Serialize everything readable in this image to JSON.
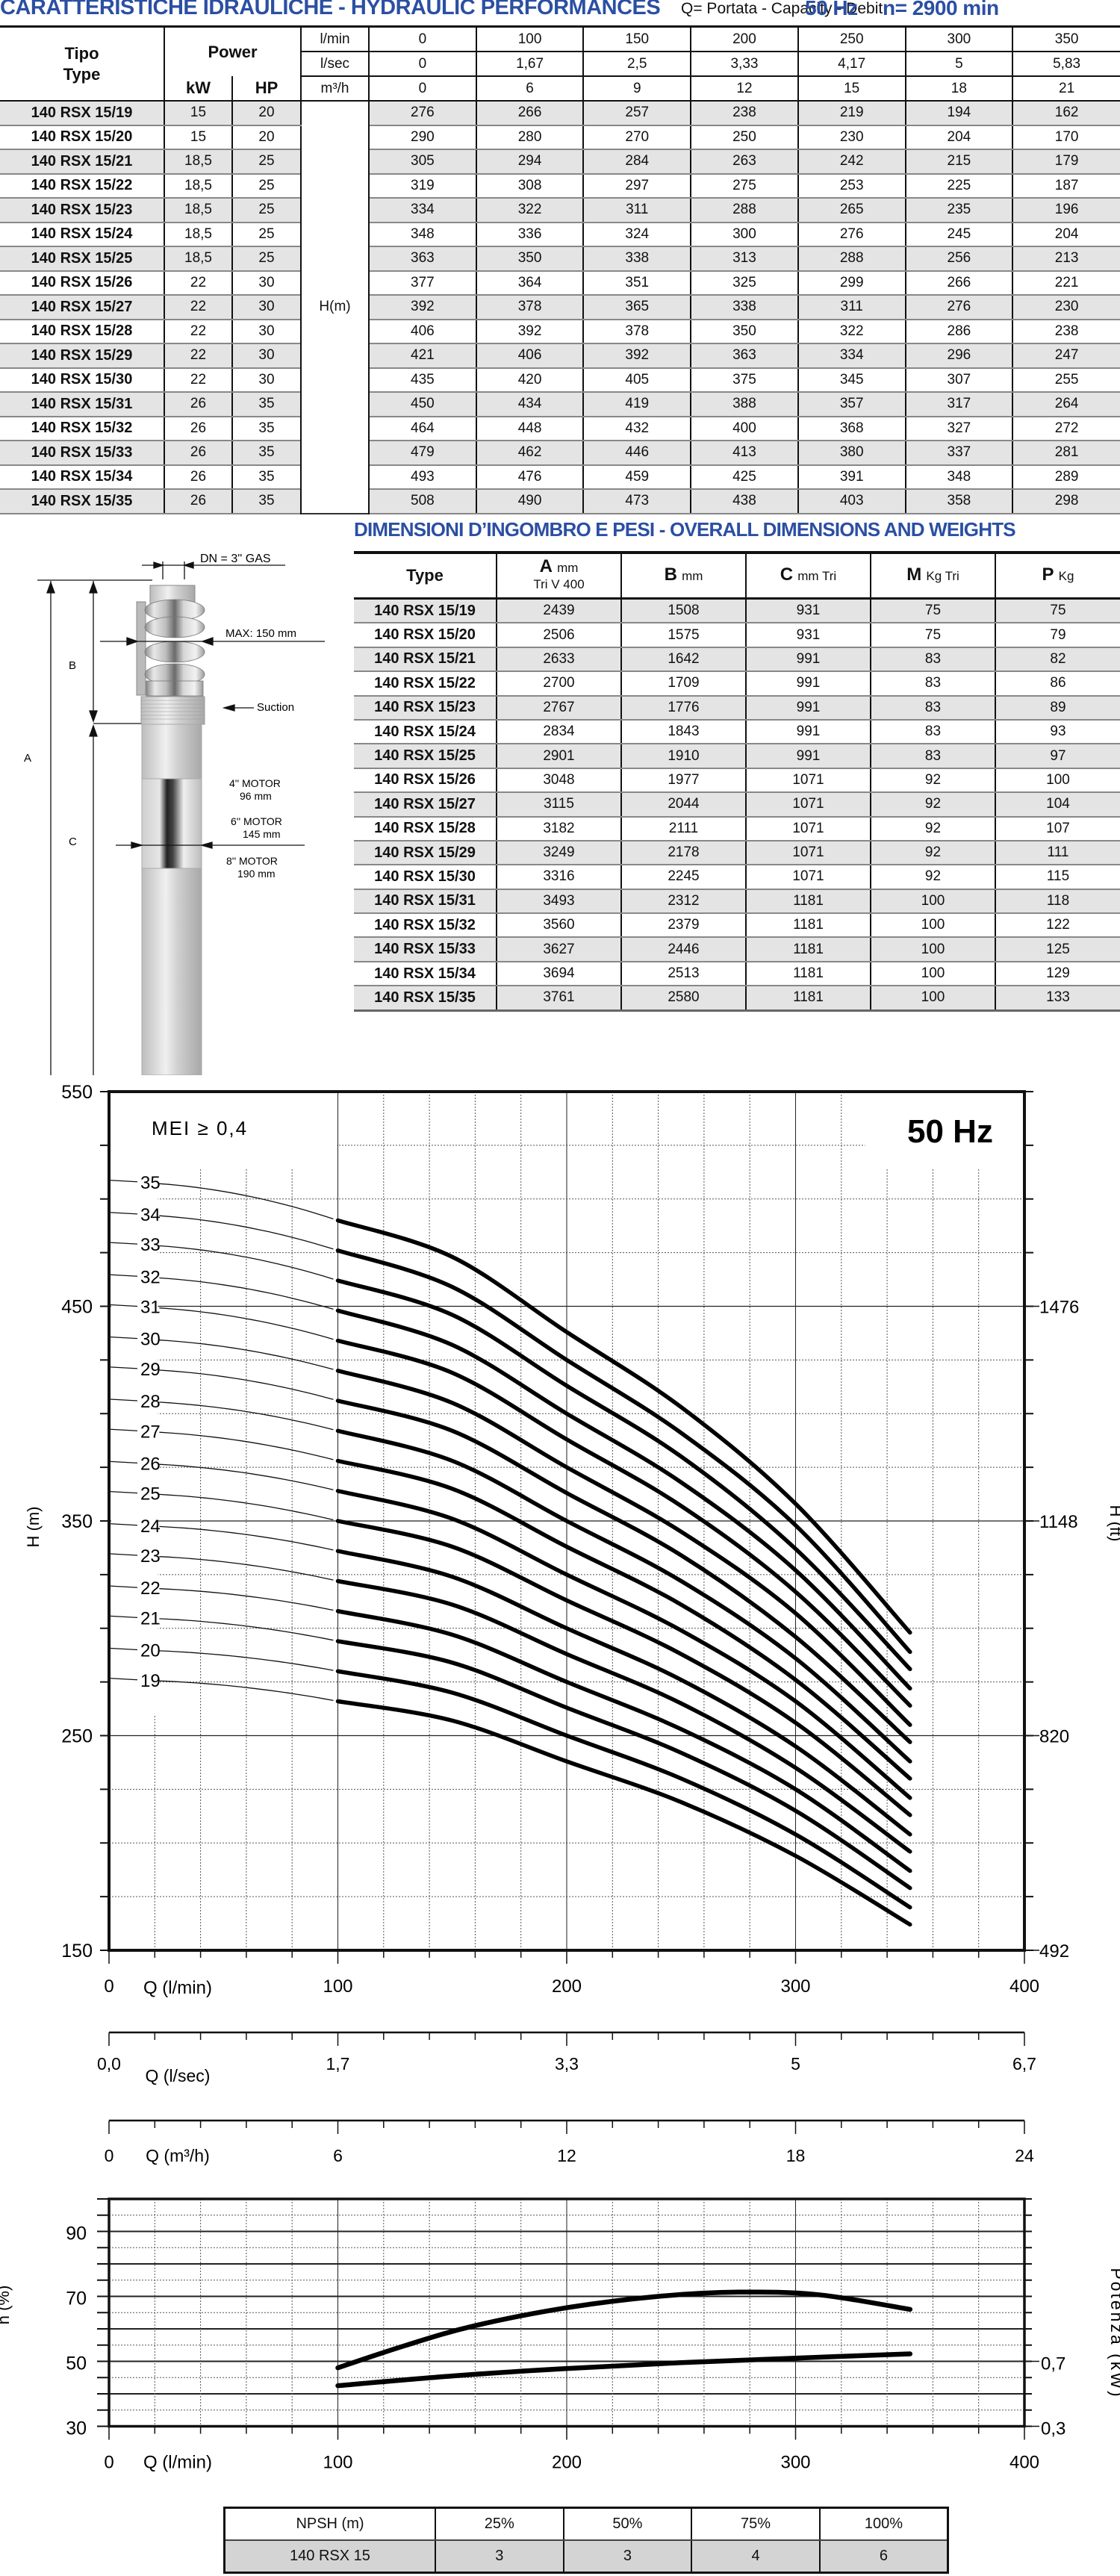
{
  "header": {
    "title": "CARATTERISTICHE IDRAULICHE - HYDRAULIC PERFORMANCES",
    "subtitle": "Q= Portata - Capacity - Debit",
    "frequency": "50 Hz",
    "speed": "n= 2900 min",
    "title_color": "#2b4fa3"
  },
  "performance_table": {
    "type_header": [
      "Tipo",
      "Type"
    ],
    "power_header": "Power",
    "kw_header": "kW",
    "hp_header": "HP",
    "flow_units": [
      {
        "unit": "l/min",
        "values": [
          "0",
          "100",
          "150",
          "200",
          "250",
          "300",
          "350"
        ]
      },
      {
        "unit": "l/sec",
        "values": [
          "0",
          "1,67",
          "2,5",
          "3,33",
          "4,17",
          "5",
          "5,83"
        ]
      },
      {
        "unit": "m³/h",
        "values": [
          "0",
          "6",
          "9",
          "12",
          "15",
          "18",
          "21"
        ]
      }
    ],
    "head_label": "H(m)",
    "rows": [
      {
        "type": "140 RSX 15/19",
        "kw": "15",
        "hp": "20",
        "h": [
          "276",
          "266",
          "257",
          "238",
          "219",
          "194",
          "162"
        ]
      },
      {
        "type": "140 RSX 15/20",
        "kw": "15",
        "hp": "20",
        "h": [
          "290",
          "280",
          "270",
          "250",
          "230",
          "204",
          "170"
        ]
      },
      {
        "type": "140 RSX 15/21",
        "kw": "18,5",
        "hp": "25",
        "h": [
          "305",
          "294",
          "284",
          "263",
          "242",
          "215",
          "179"
        ]
      },
      {
        "type": "140 RSX 15/22",
        "kw": "18,5",
        "hp": "25",
        "h": [
          "319",
          "308",
          "297",
          "275",
          "253",
          "225",
          "187"
        ]
      },
      {
        "type": "140 RSX 15/23",
        "kw": "18,5",
        "hp": "25",
        "h": [
          "334",
          "322",
          "311",
          "288",
          "265",
          "235",
          "196"
        ]
      },
      {
        "type": "140 RSX 15/24",
        "kw": "18,5",
        "hp": "25",
        "h": [
          "348",
          "336",
          "324",
          "300",
          "276",
          "245",
          "204"
        ]
      },
      {
        "type": "140 RSX 15/25",
        "kw": "18,5",
        "hp": "25",
        "h": [
          "363",
          "350",
          "338",
          "313",
          "288",
          "256",
          "213"
        ]
      },
      {
        "type": "140 RSX 15/26",
        "kw": "22",
        "hp": "30",
        "h": [
          "377",
          "364",
          "351",
          "325",
          "299",
          "266",
          "221"
        ]
      },
      {
        "type": "140 RSX 15/27",
        "kw": "22",
        "hp": "30",
        "h": [
          "392",
          "378",
          "365",
          "338",
          "311",
          "276",
          "230"
        ]
      },
      {
        "type": "140 RSX 15/28",
        "kw": "22",
        "hp": "30",
        "h": [
          "406",
          "392",
          "378",
          "350",
          "322",
          "286",
          "238"
        ]
      },
      {
        "type": "140 RSX 15/29",
        "kw": "22",
        "hp": "30",
        "h": [
          "421",
          "406",
          "392",
          "363",
          "334",
          "296",
          "247"
        ]
      },
      {
        "type": "140 RSX 15/30",
        "kw": "22",
        "hp": "30",
        "h": [
          "435",
          "420",
          "405",
          "375",
          "345",
          "307",
          "255"
        ]
      },
      {
        "type": "140 RSX 15/31",
        "kw": "26",
        "hp": "35",
        "h": [
          "450",
          "434",
          "419",
          "388",
          "357",
          "317",
          "264"
        ]
      },
      {
        "type": "140 RSX 15/32",
        "kw": "26",
        "hp": "35",
        "h": [
          "464",
          "448",
          "432",
          "400",
          "368",
          "327",
          "272"
        ]
      },
      {
        "type": "140 RSX 15/33",
        "kw": "26",
        "hp": "35",
        "h": [
          "479",
          "462",
          "446",
          "413",
          "380",
          "337",
          "281"
        ]
      },
      {
        "type": "140 RSX 15/34",
        "kw": "26",
        "hp": "35",
        "h": [
          "493",
          "476",
          "459",
          "425",
          "391",
          "348",
          "289"
        ]
      },
      {
        "type": "140 RSX 15/35",
        "kw": "26",
        "hp": "35",
        "h": [
          "508",
          "490",
          "473",
          "438",
          "403",
          "358",
          "298"
        ]
      }
    ]
  },
  "dimensions": {
    "title": "DIMENSIONI D’INGOMBRO E PESI - OVERALL DIMENSIONS AND WEIGHTS",
    "headers": [
      {
        "main": "Type",
        "unit": "",
        "sub": ""
      },
      {
        "main": "A",
        "unit": "mm",
        "sub": "Tri V 400"
      },
      {
        "main": "B",
        "unit": "mm",
        "sub": ""
      },
      {
        "main": "C",
        "unit": "mm Tri",
        "sub": ""
      },
      {
        "main": "M",
        "unit": "Kg Tri",
        "sub": ""
      },
      {
        "main": "P",
        "unit": "Kg",
        "sub": ""
      }
    ],
    "rows": [
      [
        "140 RSX 15/19",
        "2439",
        "1508",
        "931",
        "75",
        "75"
      ],
      [
        "140 RSX 15/20",
        "2506",
        "1575",
        "931",
        "75",
        "79"
      ],
      [
        "140 RSX 15/21",
        "2633",
        "1642",
        "991",
        "83",
        "82"
      ],
      [
        "140 RSX 15/22",
        "2700",
        "1709",
        "991",
        "83",
        "86"
      ],
      [
        "140 RSX 15/23",
        "2767",
        "1776",
        "991",
        "83",
        "89"
      ],
      [
        "140 RSX 15/24",
        "2834",
        "1843",
        "991",
        "83",
        "93"
      ],
      [
        "140 RSX 15/25",
        "2901",
        "1910",
        "991",
        "83",
        "97"
      ],
      [
        "140 RSX 15/26",
        "3048",
        "1977",
        "1071",
        "92",
        "100"
      ],
      [
        "140 RSX 15/27",
        "3115",
        "2044",
        "1071",
        "92",
        "104"
      ],
      [
        "140 RSX 15/28",
        "3182",
        "2111",
        "1071",
        "92",
        "107"
      ],
      [
        "140 RSX 15/29",
        "3249",
        "2178",
        "1071",
        "92",
        "111"
      ],
      [
        "140 RSX 15/30",
        "3316",
        "2245",
        "1071",
        "92",
        "115"
      ],
      [
        "140 RSX 15/31",
        "3493",
        "2312",
        "1181",
        "100",
        "118"
      ],
      [
        "140 RSX 15/32",
        "3560",
        "2379",
        "1181",
        "100",
        "122"
      ],
      [
        "140 RSX 15/33",
        "3627",
        "2446",
        "1181",
        "100",
        "125"
      ],
      [
        "140 RSX 15/34",
        "3694",
        "2513",
        "1181",
        "100",
        "129"
      ],
      [
        "140 RSX 15/35",
        "3761",
        "2580",
        "1181",
        "100",
        "133"
      ]
    ]
  },
  "drawing": {
    "dn_label": "DN = 3'' GAS",
    "max_label": "MAX: 150 mm",
    "suction_label": "Suction",
    "dim_a": "A",
    "dim_b": "B",
    "dim_c": "C",
    "motor_4": [
      "4'' MOTOR",
      "96 mm"
    ],
    "motor_6": [
      "6'' MOTOR",
      "145 mm"
    ],
    "motor_8": [
      "8'' MOTOR",
      "190 mm"
    ]
  },
  "npsh_table": {
    "header": [
      "NPSH (m)",
      "25%",
      "50%",
      "75%",
      "100%"
    ],
    "row": [
      "140 RSX 15",
      "3",
      "3",
      "4",
      "6"
    ]
  },
  "chart_data": [
    {
      "type": "line",
      "title": "50 Hz",
      "annotation": "MEI ≥ 0,4",
      "xlabel": "Q (l/min)",
      "ylabel": "H (m)",
      "y2label": "H (ft)",
      "xlim": [
        0,
        400
      ],
      "ylim": [
        150,
        550
      ],
      "x_ticks": [
        0,
        100,
        200,
        300,
        400
      ],
      "y_ticks": [
        150,
        250,
        350,
        450,
        550
      ],
      "y2_ticks": [
        {
          "value": 492,
          "at_m": 150
        },
        {
          "value": 820,
          "at_m": 250
        },
        {
          "value": 1148,
          "at_m": 350
        },
        {
          "value": 1476,
          "at_m": 450
        }
      ],
      "secondary_x_axes": [
        {
          "label": "Q (l/sec)",
          "ticks": [
            "0,0",
            "1,7",
            "3,3",
            "5",
            "6,7"
          ]
        },
        {
          "label": "Q (m³/h)",
          "ticks": [
            "0",
            "6",
            "12",
            "18",
            "24"
          ]
        }
      ],
      "grid": true,
      "x": [
        100,
        150,
        200,
        250,
        300,
        350
      ],
      "thin_start_x": 22,
      "series": [
        {
          "name": "19",
          "h0": 276,
          "values": [
            266,
            257,
            238,
            219,
            194,
            162
          ]
        },
        {
          "name": "20",
          "h0": 290,
          "values": [
            280,
            270,
            250,
            230,
            204,
            170
          ]
        },
        {
          "name": "21",
          "h0": 305,
          "values": [
            294,
            284,
            263,
            242,
            215,
            179
          ]
        },
        {
          "name": "22",
          "h0": 319,
          "values": [
            308,
            297,
            275,
            253,
            225,
            187
          ]
        },
        {
          "name": "23",
          "h0": 334,
          "values": [
            322,
            311,
            288,
            265,
            235,
            196
          ]
        },
        {
          "name": "24",
          "h0": 348,
          "values": [
            336,
            324,
            300,
            276,
            245,
            204
          ]
        },
        {
          "name": "25",
          "h0": 363,
          "values": [
            350,
            338,
            313,
            288,
            256,
            213
          ]
        },
        {
          "name": "26",
          "h0": 377,
          "values": [
            364,
            351,
            325,
            299,
            266,
            221
          ]
        },
        {
          "name": "27",
          "h0": 392,
          "values": [
            378,
            365,
            338,
            311,
            276,
            230
          ]
        },
        {
          "name": "28",
          "h0": 406,
          "values": [
            392,
            378,
            350,
            322,
            286,
            238
          ]
        },
        {
          "name": "29",
          "h0": 421,
          "values": [
            406,
            392,
            363,
            334,
            296,
            247
          ]
        },
        {
          "name": "30",
          "h0": 435,
          "values": [
            420,
            405,
            375,
            345,
            307,
            255
          ]
        },
        {
          "name": "31",
          "h0": 450,
          "values": [
            434,
            419,
            388,
            357,
            317,
            264
          ]
        },
        {
          "name": "32",
          "h0": 464,
          "values": [
            448,
            432,
            400,
            368,
            327,
            272
          ]
        },
        {
          "name": "33",
          "h0": 479,
          "values": [
            462,
            446,
            413,
            380,
            337,
            281
          ]
        },
        {
          "name": "34",
          "h0": 493,
          "values": [
            476,
            459,
            425,
            391,
            348,
            289
          ]
        },
        {
          "name": "35",
          "h0": 508,
          "values": [
            490,
            473,
            438,
            403,
            358,
            298
          ]
        }
      ]
    },
    {
      "type": "line",
      "xlabel": "Q (l/min)",
      "ylabel": "n (%)",
      "y2label": "Potenza (kW)",
      "xlim": [
        0,
        400
      ],
      "ylim": [
        30,
        100
      ],
      "x_ticks": [
        0,
        100,
        200,
        300,
        400
      ],
      "y_ticks": [
        30,
        50,
        70,
        90
      ],
      "y2_ticks": [
        {
          "value": "0,3",
          "at": 30
        },
        {
          "value": "0,7",
          "at": 50
        }
      ],
      "grid": true,
      "series": [
        {
          "name": "Efficiency n (%)",
          "x": [
            100,
            130,
            160,
            200,
            240,
            275,
            310,
            350
          ],
          "values": [
            48,
            55,
            61,
            66.5,
            70,
            71.3,
            70.5,
            66
          ]
        },
        {
          "name": "Power",
          "x": [
            100,
            150,
            200,
            250,
            300,
            350
          ],
          "values": [
            42.5,
            45.5,
            47.8,
            49.6,
            51,
            52.3
          ]
        }
      ]
    }
  ]
}
